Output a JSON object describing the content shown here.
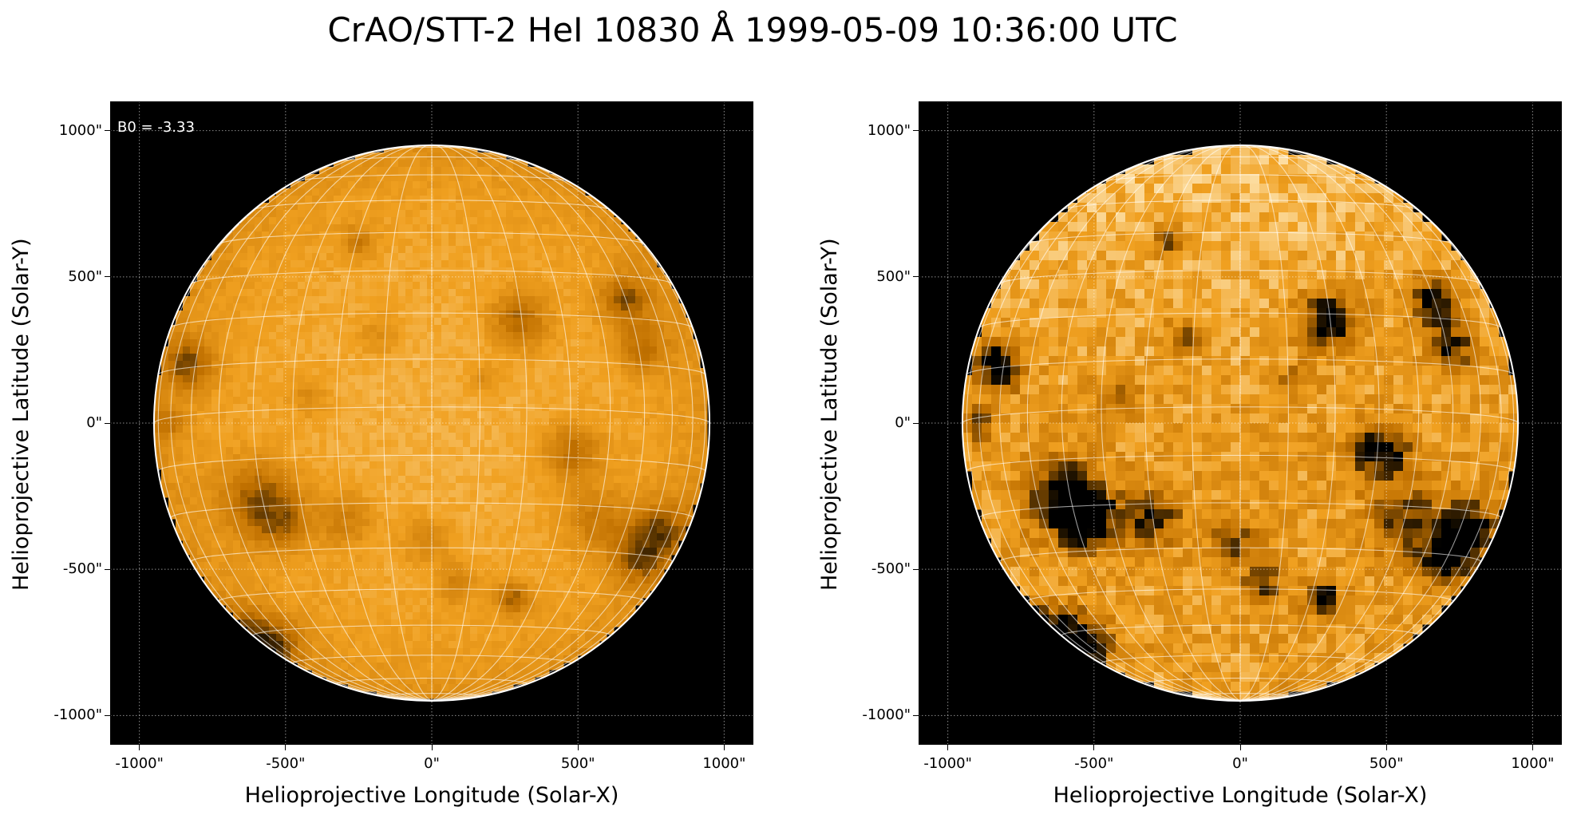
{
  "figure": {
    "title": "CrAO/STT-2 HeI 10830 Å 1999-05-09 10:36:00 UTC",
    "annotation": "B0 = -3.33"
  },
  "axes": {
    "x_label": "Helioprojective Longitude (Solar-X)",
    "y_label": "Helioprojective Latitude (Solar-Y)",
    "x_ticks": [
      "-1000\"",
      "-500\"",
      "0\"",
      "500\"",
      "1000\""
    ],
    "y_ticks": [
      "1000\"",
      "500\"",
      "0\"",
      "-500\"",
      "-1000\""
    ],
    "x_tick_values": [
      -1000,
      -500,
      0,
      500,
      1000
    ],
    "y_tick_values": [
      1000,
      500,
      0,
      -500,
      -1000
    ],
    "xlim": [
      -1100,
      1100
    ],
    "ylim": [
      -1100,
      1100
    ]
  },
  "image": {
    "colormap": [
      "#000000",
      "#c07000",
      "#f0a020",
      "#ffe8b8"
    ],
    "limb_color": "#ffffff",
    "grid_color": "#ffffff"
  },
  "panels": [
    {
      "name": "left-panel",
      "contrast": "low"
    },
    {
      "name": "right-panel",
      "contrast": "high"
    }
  ]
}
